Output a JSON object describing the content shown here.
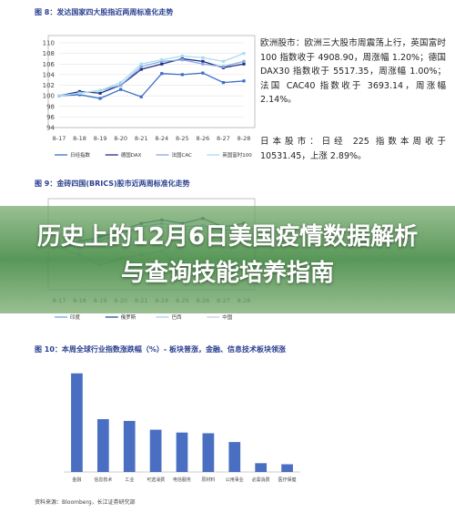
{
  "chart_data": [
    {
      "type": "line",
      "title": "图 8：发达国家四大股指近两周标准化走势",
      "categories": [
        "8-17",
        "8-18",
        "8-19",
        "8-20",
        "8-21",
        "8-24",
        "8-25",
        "8-26",
        "8-27",
        "8-28"
      ],
      "series": [
        {
          "name": "日经指数",
          "color": "#3b6fc4",
          "values": [
            100,
            100.2,
            99.5,
            101.2,
            99.8,
            104.2,
            104,
            104.3,
            102.5,
            102.8
          ]
        },
        {
          "name": "德国DAX",
          "color": "#1f2f8a",
          "values": [
            100,
            100.8,
            100.5,
            102,
            105,
            106,
            107,
            106.5,
            105.3,
            106
          ]
        },
        {
          "name": "法国CAC",
          "color": "#8aa8e0",
          "values": [
            100,
            100.5,
            101,
            102,
            105.5,
            106.5,
            106.8,
            106,
            105.5,
            106.5
          ]
        },
        {
          "name": "英国富时100",
          "color": "#a9dcf2",
          "values": [
            100,
            100.5,
            101,
            102.5,
            106,
            106.8,
            107.5,
            107.2,
            106.5,
            108
          ]
        }
      ],
      "ylim": [
        94,
        110
      ],
      "yticks": [
        94,
        96,
        98,
        100,
        102,
        104,
        106,
        108,
        110
      ]
    },
    {
      "type": "line",
      "title": "图 9：金砖四国(BRICS)股市近两周标准化走势",
      "categories": [
        "8-17",
        "8-18",
        "8-19",
        "8-20",
        "8-21",
        "8-24",
        "8-25",
        "8-26",
        "8-27",
        "8-28"
      ],
      "series": [
        {
          "name": "印度",
          "color": "#6fa8dc",
          "values": [
            100,
            100.5,
            101,
            102,
            103,
            103.5,
            103,
            103.2,
            102.5,
            102.8
          ]
        },
        {
          "name": "俄罗斯",
          "color": "#2a4d9c",
          "values": [
            100,
            101,
            101.5,
            102.5,
            103.5,
            104,
            103.5,
            104.2,
            103,
            103.5
          ]
        },
        {
          "name": "巴西",
          "color": "#a9d0f0",
          "values": [
            100,
            100.8,
            101.2,
            102,
            102.8,
            103,
            102.5,
            103,
            102,
            102.4
          ]
        },
        {
          "name": "中国",
          "color": "#c5cbe6",
          "values": [
            100,
            99,
            97.5,
            98.5,
            99,
            99.5,
            97,
            96.5,
            97,
            97.5
          ]
        }
      ],
      "ylim": [
        94,
        106
      ]
    },
    {
      "type": "bar",
      "title": "图 10：本周全球行业指数涨跌幅（%）- 板块普涨，金融、信息技术板块领涨",
      "categories": [
        "金融",
        "信息技术",
        "工业",
        "可选消费",
        "电信服务",
        "原材料",
        "公用事业",
        "必需消费",
        "医疗保健"
      ],
      "values": [
        2.8,
        1.5,
        1.45,
        1.2,
        1.12,
        1.1,
        0.85,
        0.25,
        0.22
      ],
      "color": "#4a6fc2",
      "ylim": [
        0,
        3
      ]
    }
  ],
  "side_text": [
    "欧洲股市：欧洲三大股市周震荡上行，英国富时 100 指数收于 4908.90，周涨幅 1.20%；德国 DAX30 指数收于 5517.35，周涨幅 1.00%；法国 CAC40 指数收于 3693.14，周涨幅 2.14%。",
    "日本股市：日经 225 指数本周收于 10531.45，上涨 2.89%。"
  ],
  "overlay_title": "历史上的12月6日美国疫情数据解析与查询技能培养指南",
  "source": "资料来源：Bloomberg，长江证券研究部"
}
